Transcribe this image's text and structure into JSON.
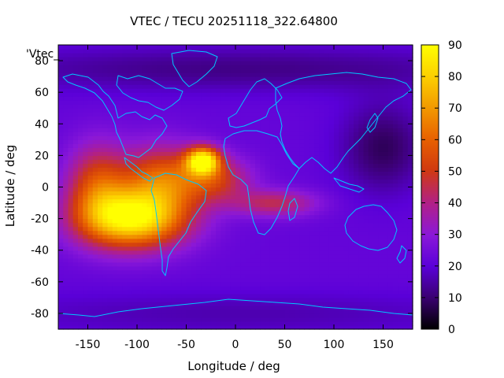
{
  "chart_data": {
    "type": "heatmap",
    "title": "VTEC / TECU 20251118_322.64800",
    "xlabel": "Longitude / deg",
    "ylabel": "Latitude / deg",
    "xlim": [
      -180,
      180
    ],
    "ylim": [
      -90,
      90
    ],
    "xticks": [
      -150,
      -100,
      -50,
      0,
      50,
      100,
      150
    ],
    "yticks": [
      -80,
      -60,
      -40,
      -20,
      0,
      20,
      40,
      60,
      80
    ],
    "colorbar": {
      "min": 0,
      "max": 90,
      "ticks": [
        0,
        10,
        20,
        30,
        40,
        50,
        60,
        70,
        80,
        90
      ]
    },
    "legend_entry": "'Vtec_",
    "background_level": 22,
    "features": [
      {
        "name": "main-pacific-south-america-peak",
        "lon": -105,
        "lat": -20,
        "peak": 86,
        "sigma_lon": 38,
        "sigma_lat": 13
      },
      {
        "name": "west-pacific-extension",
        "lon": -140,
        "lat": 2,
        "peak": 52,
        "sigma_lon": 22,
        "sigma_lat": 18
      },
      {
        "name": "central-america-band",
        "lon": -75,
        "lat": 5,
        "peak": 58,
        "sigma_lon": 28,
        "sigma_lat": 15
      },
      {
        "name": "north-atlantic-secondary-peak",
        "lon": -33,
        "lat": 17,
        "peak": 84,
        "sigma_lon": 12,
        "sigma_lat": 6
      },
      {
        "name": "atlantic-band",
        "lon": -20,
        "lat": 5,
        "peak": 48,
        "sigma_lon": 25,
        "sigma_lat": 10
      },
      {
        "name": "africa-band",
        "lon": 40,
        "lat": -10,
        "peak": 44,
        "sigma_lon": 30,
        "sigma_lat": 6
      },
      {
        "name": "north-polar-low",
        "lon": 0,
        "lat": 75,
        "peak": -10,
        "sigma_lon": 200,
        "sigma_lat": 10
      },
      {
        "name": "east-asia-low",
        "lon": 150,
        "lat": 25,
        "peak": -14,
        "sigma_lon": 30,
        "sigma_lat": 20
      },
      {
        "name": "south-polar-low",
        "lon": 0,
        "lat": -80,
        "peak": -6,
        "sigma_lon": 200,
        "sigma_lat": 10
      }
    ]
  }
}
